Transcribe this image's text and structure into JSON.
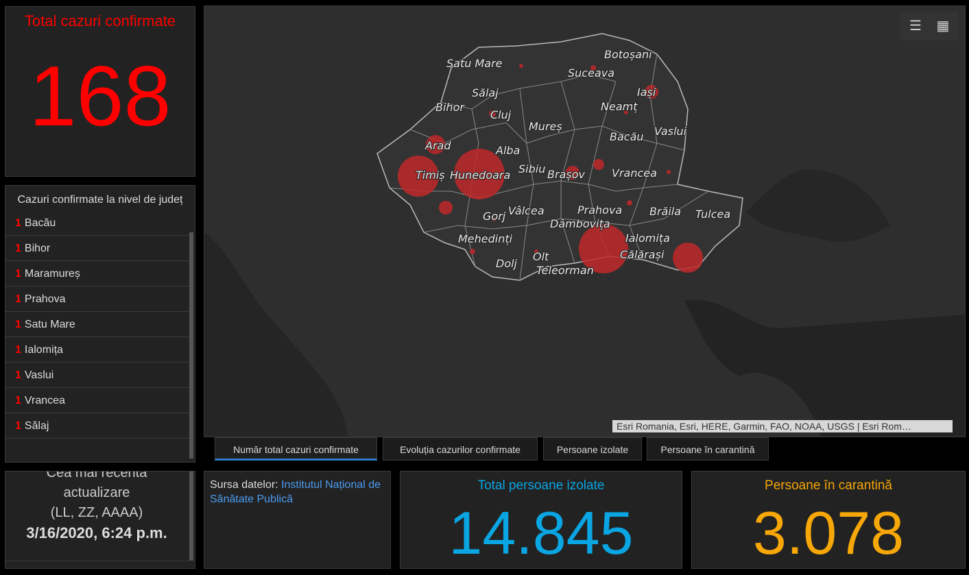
{
  "total": {
    "title": "Total cazuri confirmate",
    "value": "168"
  },
  "county_list": {
    "title": "Cazuri confirmate la nivel de județ",
    "items": [
      {
        "count": "1",
        "name": "Bacău"
      },
      {
        "count": "1",
        "name": "Bihor"
      },
      {
        "count": "1",
        "name": "Maramureș"
      },
      {
        "count": "1",
        "name": "Prahova"
      },
      {
        "count": "1",
        "name": "Satu Mare"
      },
      {
        "count": "1",
        "name": "Ialomița"
      },
      {
        "count": "1",
        "name": "Vaslui"
      },
      {
        "count": "1",
        "name": "Vrancea"
      },
      {
        "count": "1",
        "name": "Sălaj"
      }
    ]
  },
  "updated": {
    "line1": "Cea mai recentă",
    "line2": "actualizare",
    "line3": "(LL, ZZ, AAAA)",
    "date": "3/16/2020, 6:24 p.m."
  },
  "map": {
    "labels": [
      {
        "text": "Satu Mare"
      },
      {
        "text": "Botoșani"
      },
      {
        "text": "Suceava"
      },
      {
        "text": "Sălaj"
      },
      {
        "text": "Iași"
      },
      {
        "text": "Bihor"
      },
      {
        "text": "Cluj"
      },
      {
        "text": "Neamț"
      },
      {
        "text": "Mureș"
      },
      {
        "text": "Bacău"
      },
      {
        "text": "Vaslui"
      },
      {
        "text": "Arad"
      },
      {
        "text": "Alba"
      },
      {
        "text": "Sibiu"
      },
      {
        "text": "Brașov"
      },
      {
        "text": "Vrancea"
      },
      {
        "text": "Timiș"
      },
      {
        "text": "Hunedoara"
      },
      {
        "text": "Vâlcea"
      },
      {
        "text": "Prahova"
      },
      {
        "text": "Brăila"
      },
      {
        "text": "Tulcea"
      },
      {
        "text": "Gorj"
      },
      {
        "text": "Dâmbovița"
      },
      {
        "text": "Mehedinți"
      },
      {
        "text": "Ialomița"
      },
      {
        "text": "Olt"
      },
      {
        "text": "Călărași"
      },
      {
        "text": "Dolj"
      },
      {
        "text": "Teleorman"
      }
    ],
    "bubble_color": "#c0282a",
    "attribution": "Esri Romania, Esri, HERE, Garmin, FAO, NOAA, USGS | Esri Rom…",
    "legend_icon": "legend-list-icon",
    "basemap_icon": "basemap-gallery-icon"
  },
  "tabs": [
    {
      "label": "Număr total cazuri confirmate",
      "active": true
    },
    {
      "label": "Evoluția cazurilor confirmate",
      "active": false
    },
    {
      "label": "Persoane izolate",
      "active": false
    },
    {
      "label": "Persoane în carantină",
      "active": false
    }
  ],
  "source": {
    "prefix": "Sursa datelor:",
    "link": "Institutul Național de Sănătate Publică"
  },
  "isolated": {
    "title": "Total persoane izolate",
    "value": "14.845"
  },
  "quarantine": {
    "title": "Persoane în carantină",
    "value": "3.078"
  },
  "colors": {
    "red": "#ff0000",
    "blue": "#0aa5e3",
    "orange": "#f7a707",
    "link": "#4c9cf0",
    "tab_active": "#2f7ccf"
  }
}
